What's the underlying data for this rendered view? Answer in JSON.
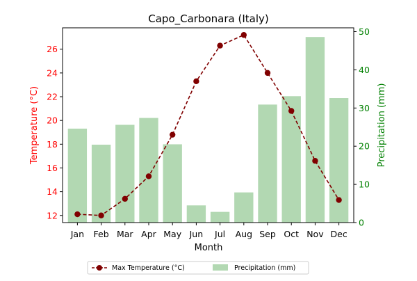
{
  "chart_data": {
    "type": "bar+line",
    "title": "Capo_Carbonara (Italy)",
    "xlabel": "Month",
    "ylabel_left": "Temperature (°C)",
    "ylabel_right": "Precipitation (mm)",
    "categories": [
      "Jan",
      "Feb",
      "Mar",
      "Apr",
      "May",
      "Jun",
      "Jul",
      "Aug",
      "Sep",
      "Oct",
      "Nov",
      "Dec"
    ],
    "ylim_left": [
      11.4,
      27.8
    ],
    "ylim_right": [
      0,
      51
    ],
    "yticks_left": [
      12,
      14,
      16,
      18,
      20,
      22,
      24,
      26
    ],
    "yticks_right": [
      0,
      10,
      20,
      30,
      40,
      50
    ],
    "left_axis_color": "#ff0000",
    "right_axis_color": "#008000",
    "series": [
      {
        "name": "Max Temperature (°C)",
        "kind": "line",
        "axis": "left",
        "color": "#800000",
        "values": [
          12.1,
          12.0,
          13.4,
          15.3,
          18.8,
          23.3,
          26.3,
          27.2,
          24.0,
          20.8,
          16.6,
          13.3
        ]
      },
      {
        "name": "Precipitation (mm)",
        "kind": "bar",
        "axis": "right",
        "color": "#b2d8b2",
        "values": [
          24.6,
          20.4,
          25.6,
          27.4,
          20.5,
          4.5,
          2.8,
          7.9,
          30.9,
          33.1,
          48.6,
          32.6
        ]
      }
    ],
    "legend_position": "bottom-center",
    "grid": false
  }
}
